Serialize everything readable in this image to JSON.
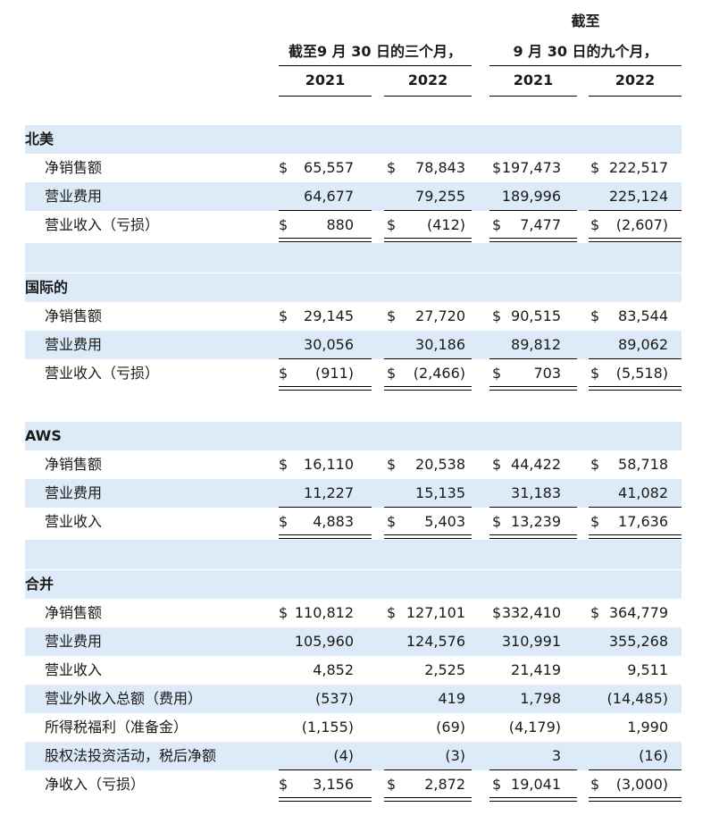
{
  "header": {
    "col_group_1": "截至9 月 30 日的三个月，",
    "col_group_2_line1": "截至",
    "col_group_2_line2": "9 月 30 日的九个月，",
    "years": [
      "2021",
      "2022",
      "2021",
      "2022"
    ]
  },
  "currency_symbol": "$",
  "sections": [
    {
      "title": "北美",
      "rows": [
        {
          "label": "净销售额",
          "values": [
            "65,557",
            "78,843",
            "197,473",
            "222,517"
          ],
          "dollar": [
            true,
            true,
            true,
            true
          ]
        },
        {
          "label": "营业费用",
          "values": [
            "64,677",
            "79,255",
            "189,996",
            "225,124"
          ],
          "dollar": [
            false,
            false,
            false,
            false
          ]
        },
        {
          "label": "营业收入（亏损）",
          "values": [
            "880",
            "(412)",
            "7,477",
            "(2,607)"
          ],
          "dollar": [
            true,
            true,
            true,
            true
          ]
        }
      ]
    },
    {
      "title": "国际的",
      "rows": [
        {
          "label": "净销售额",
          "values": [
            "29,145",
            "27,720",
            "90,515",
            "83,544"
          ],
          "dollar": [
            true,
            true,
            true,
            true
          ]
        },
        {
          "label": "营业费用",
          "values": [
            "30,056",
            "30,186",
            "89,812",
            "89,062"
          ],
          "dollar": [
            false,
            false,
            false,
            false
          ]
        },
        {
          "label": "营业收入（亏损）",
          "values": [
            "(911)",
            "(2,466)",
            "703",
            "(5,518)"
          ],
          "dollar": [
            true,
            true,
            true,
            true
          ]
        }
      ]
    },
    {
      "title": "AWS",
      "rows": [
        {
          "label": "净销售额",
          "values": [
            "16,110",
            "20,538",
            "44,422",
            "58,718"
          ],
          "dollar": [
            true,
            true,
            true,
            true
          ]
        },
        {
          "label": "营业费用",
          "values": [
            "11,227",
            "15,135",
            "31,183",
            "41,082"
          ],
          "dollar": [
            false,
            false,
            false,
            false
          ]
        },
        {
          "label": "营业收入",
          "values": [
            "4,883",
            "5,403",
            "13,239",
            "17,636"
          ],
          "dollar": [
            true,
            true,
            true,
            true
          ]
        }
      ]
    },
    {
      "title": "合并",
      "rows": [
        {
          "label": "净销售额",
          "values": [
            "110,812",
            "127,101",
            "332,410",
            "364,779"
          ],
          "dollar": [
            true,
            true,
            true,
            true
          ]
        },
        {
          "label": "营业费用",
          "values": [
            "105,960",
            "124,576",
            "310,991",
            "355,268"
          ],
          "dollar": [
            false,
            false,
            false,
            false
          ]
        },
        {
          "label": "营业收入",
          "values": [
            "4,852",
            "2,525",
            "21,419",
            "9,511"
          ],
          "dollar": [
            false,
            false,
            false,
            false
          ]
        },
        {
          "label": "营业外收入总额（费用）",
          "values": [
            "(537)",
            "419",
            "1,798",
            "(14,485)"
          ],
          "dollar": [
            false,
            false,
            false,
            false
          ]
        },
        {
          "label": "所得税福利（准备金）",
          "values": [
            "(1,155)",
            "(69)",
            "(4,179)",
            "1,990"
          ],
          "dollar": [
            false,
            false,
            false,
            false
          ]
        },
        {
          "label": "股权法投资活动，税后净额",
          "values": [
            "(4)",
            "(3)",
            "3",
            "(16)"
          ],
          "dollar": [
            false,
            false,
            false,
            false
          ]
        },
        {
          "label": "净收入（亏损）",
          "values": [
            "3,156",
            "2,872",
            "19,041",
            "(3,000)"
          ],
          "dollar": [
            true,
            true,
            true,
            true
          ]
        }
      ]
    }
  ]
}
